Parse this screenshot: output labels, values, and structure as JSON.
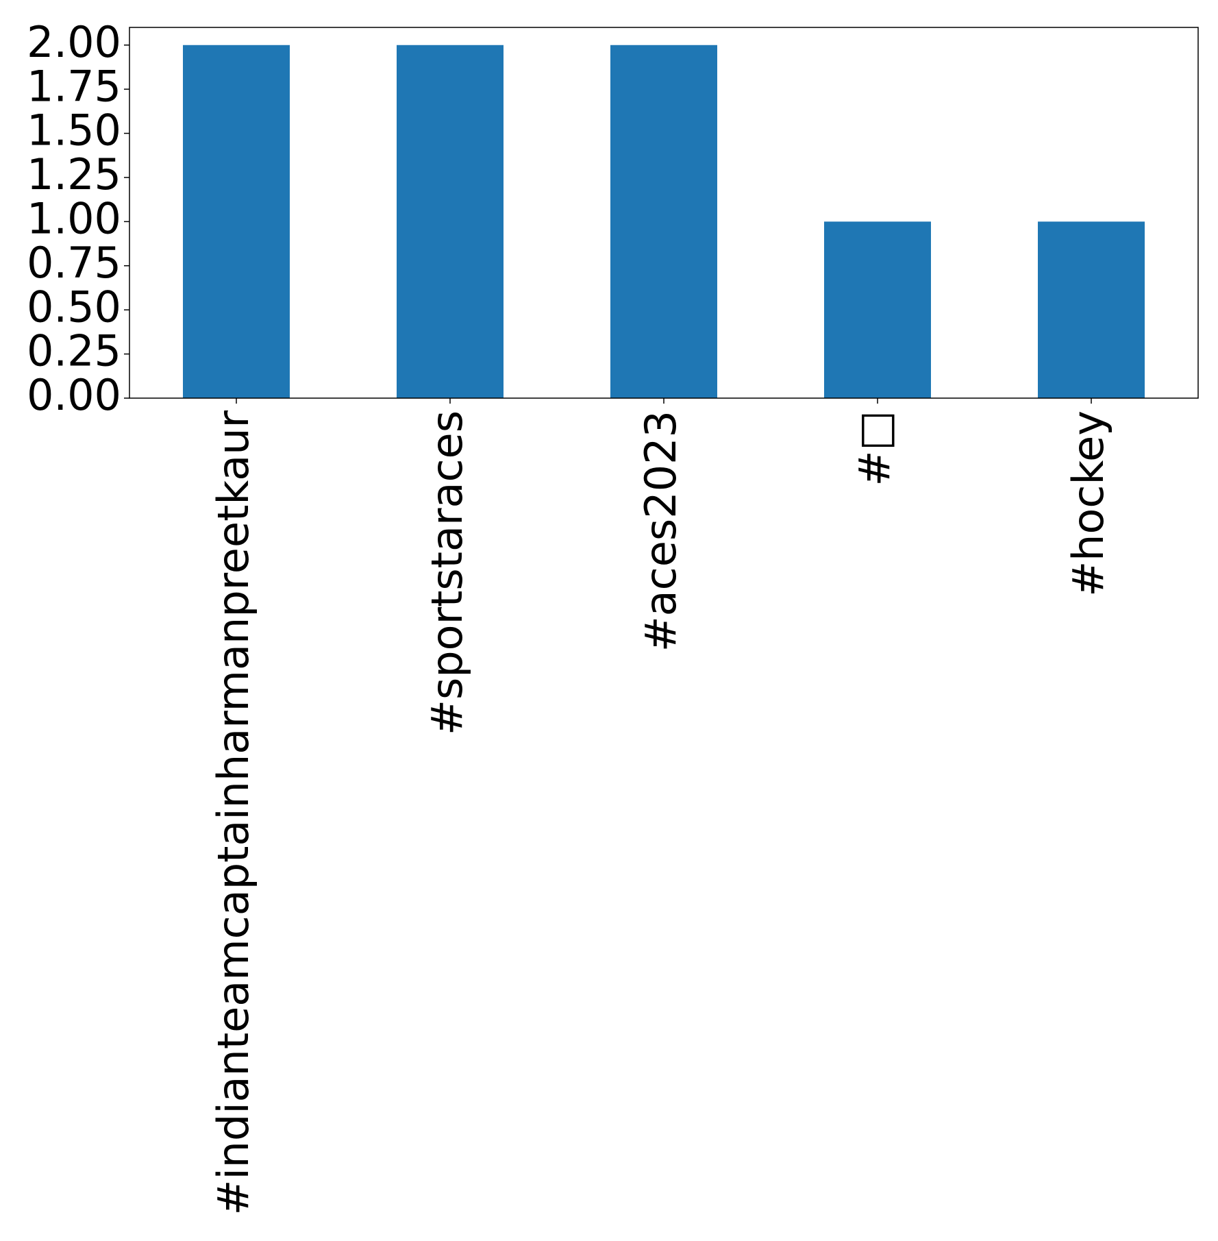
{
  "chart_data": {
    "type": "bar",
    "categories": [
      "#indianteamcaptainharmanpreetkaur",
      "#sportstaraces",
      "#aces2023",
      "#□",
      "#hockey"
    ],
    "values": [
      2,
      2,
      2,
      1,
      1
    ],
    "color": "#1f77b4",
    "ylim": [
      0,
      2.1
    ],
    "yticks": [
      {
        "value": 0,
        "label": "0.00"
      },
      {
        "value": 0.25,
        "label": "0.25"
      },
      {
        "value": 0.5,
        "label": "0.50"
      },
      {
        "value": 0.75,
        "label": "0.75"
      },
      {
        "value": 1,
        "label": "1.00"
      },
      {
        "value": 1.25,
        "label": "1.25"
      },
      {
        "value": 1.5,
        "label": "1.50"
      },
      {
        "value": 1.75,
        "label": "1.75"
      },
      {
        "value": 2,
        "label": "2.00"
      }
    ],
    "grid": false
  }
}
